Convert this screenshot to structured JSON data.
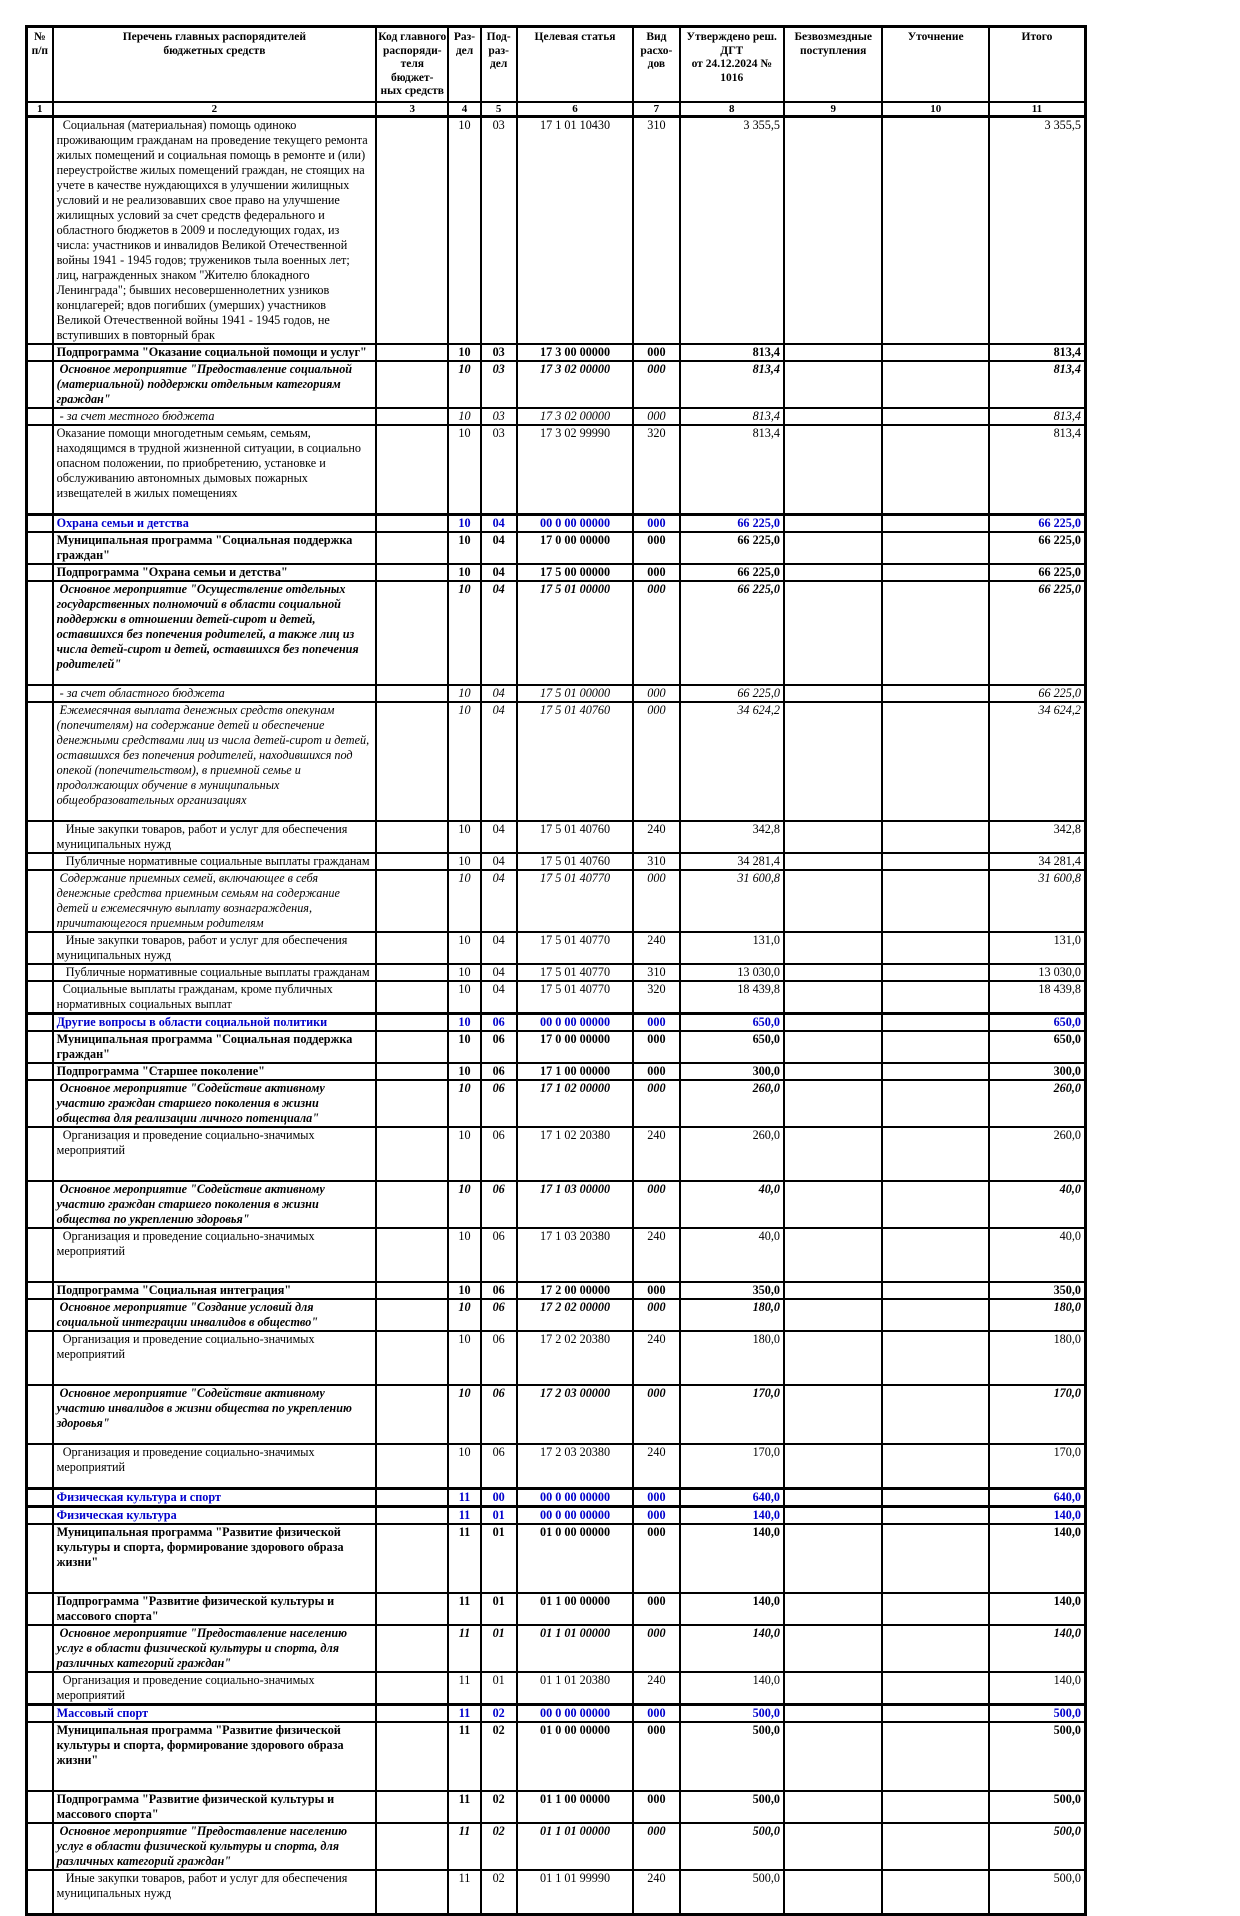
{
  "colors": {
    "section_blue": "#0000cc",
    "border": "#000000",
    "page_background": "#ffffff"
  },
  "table": {
    "header": {
      "labels": [
        "№\nп/п",
        "Перечень главных распорядителей\nбюджетных средств",
        "Код главного\nраспоряди-\nтеля бюджет-\nных средств",
        "Раз-\nдел",
        "Под-\nраз-\nдел",
        "Целевая статья",
        "Вид расхо-\nдов",
        "Утверждено реш. ДГТ\nот 24.12.2024 № 1016",
        "Безвозмездные\nпоступления",
        "Уточнение",
        "Итого"
      ],
      "numbers": [
        "1",
        "2",
        "3",
        "4",
        "5",
        "6",
        "7",
        "8",
        "9",
        "10",
        "11"
      ]
    },
    "rows": [
      {
        "style": "normal",
        "gap": 0,
        "text": "  Социальная (материальная) помощь одиноко проживающим гражданам на проведение текущего ремонта жилых помещений и социальная помощь в ремонте и (или) переустройстве жилых помещений граждан, не стоящих на учете в качестве нуждающихся в улучшении жилищных условий и не реализовавших свое право на улучшение жилищных условий за счет средств федерального и областного бюджетов в 2009 и последующих годах, из числа: участников и инвалидов Великой Отечественной войны 1941 - 1945 годов; тружеников тыла военных лет; лиц, награжденных знаком \"Жителю блокадного Ленинграда\"; бывших несовершеннолетних узников концлагерей; вдов погибших (умерших) участников Великой Отечественной войны 1941 - 1945 годов, не вступивших в повторный брак",
        "razdel": "10",
        "podrazdel": "03",
        "target": "17 1 01 10430",
        "expense": "310",
        "approved": "3 355,5",
        "total": "3 355,5"
      },
      {
        "style": "bold",
        "gap": 0,
        "text": "Подпрограмма \"Оказание социальной помощи и услуг\"",
        "razdel": "10",
        "podrazdel": "03",
        "target": "17 3 00 00000",
        "expense": "000",
        "approved": "813,4",
        "total": "813,4"
      },
      {
        "style": "bolditalic",
        "gap": 0,
        "text": " Основное мероприятие \"Предоставление социальной (материальной) поддержки отдельным категориям граждан\"",
        "razdel": "10",
        "podrazdel": "03",
        "target": "17 3 02 00000",
        "expense": "000",
        "approved": "813,4",
        "total": "813,4"
      },
      {
        "style": "italic",
        "gap": 0,
        "text": " - за счет местного бюджета",
        "razdel": "10",
        "podrazdel": "03",
        "target": "17 3 02 00000",
        "expense": "000",
        "approved": "813,4",
        "total": "813,4"
      },
      {
        "style": "normal",
        "gap": 1,
        "text": "Оказание помощи многодетным семьям, семьям, находящимся в трудной жизненной ситуации, в социально опасном положении, по приобретению, установке и обслуживанию автономных дымовых пожарных извещателей в жилых помещениях",
        "razdel": "10",
        "podrazdel": "03",
        "target": "17 3 02 99990",
        "expense": "320",
        "approved": "813,4",
        "total": "813,4"
      },
      {
        "style": "blue",
        "gap": 0,
        "text": "Охрана семьи и детства",
        "razdel": "10",
        "podrazdel": "04",
        "target": "00 0 00 00000",
        "expense": "000",
        "approved": "66 225,0",
        "total": "66 225,0"
      },
      {
        "style": "bold",
        "gap": 0,
        "text": "Муниципальная программа \"Социальная поддержка граждан\"",
        "razdel": "10",
        "podrazdel": "04",
        "target": "17 0 00 00000",
        "expense": "000",
        "approved": "66 225,0",
        "total": "66 225,0"
      },
      {
        "style": "bold",
        "gap": 0,
        "text": "Подпрограмма \"Охрана семьи и детства\"",
        "razdel": "10",
        "podrazdel": "04",
        "target": "17 5 00 00000",
        "expense": "000",
        "approved": "66 225,0",
        "total": "66 225,0"
      },
      {
        "style": "bolditalic",
        "gap": 1,
        "text": " Основное мероприятие \"Осуществление отдельных государственных полномочий в области социальной поддержки в отношении детей-сирот и детей, оставшихся без попечения родителей, а также лиц из числа детей-сирот и детей, оставшихся без попечения родителей\"",
        "razdel": "10",
        "podrazdel": "04",
        "target": "17 5 01 00000",
        "expense": "000",
        "approved": "66 225,0",
        "total": "66 225,0"
      },
      {
        "style": "italic",
        "gap": 0,
        "text": " - за счет областного бюджета",
        "razdel": "10",
        "podrazdel": "04",
        "target": "17 5 01 00000",
        "expense": "000",
        "approved": "66 225,0",
        "total": "66 225,0"
      },
      {
        "style": "italic",
        "gap": 1,
        "text": " Ежемесячная выплата денежных средств опекунам (попечителям) на содержание детей и обеспечение денежными средствами лиц из числа детей-сирот и детей, оставшихся без попечения родителей, находившихся под опекой (попечительством), в приемной семье и продолжающих обучение в муниципальных общеобразовательных организациях",
        "razdel": "10",
        "podrazdel": "04",
        "target": "17 5 01 40760",
        "expense": "000",
        "approved": "34 624,2",
        "total": "34 624,2"
      },
      {
        "style": "normal",
        "gap": 0,
        "text": "   Иные закупки товаров, работ и услуг для обеспечения муниципальных нужд",
        "razdel": "10",
        "podrazdel": "04",
        "target": "17 5 01 40760",
        "expense": "240",
        "approved": "342,8",
        "total": "342,8"
      },
      {
        "style": "normal",
        "gap": 0,
        "text": "   Публичные нормативные социальные выплаты гражданам",
        "razdel": "10",
        "podrazdel": "04",
        "target": "17 5 01 40760",
        "expense": "310",
        "approved": "34 281,4",
        "total": "34 281,4"
      },
      {
        "style": "italic",
        "gap": 0,
        "text": " Содержание приемных семей, включающее в себя денежные средства приемным семьям на содержание детей и ежемесячную выплату вознаграждения, причитающегося приемным родителям",
        "razdel": "10",
        "podrazdel": "04",
        "target": "17 5 01 40770",
        "expense": "000",
        "approved": "31 600,8",
        "total": "31 600,8"
      },
      {
        "style": "normal",
        "gap": 0,
        "text": "   Иные закупки товаров, работ и услуг для обеспечения муниципальных нужд",
        "razdel": "10",
        "podrazdel": "04",
        "target": "17 5 01 40770",
        "expense": "240",
        "approved": "131,0",
        "total": "131,0"
      },
      {
        "style": "normal",
        "gap": 0,
        "text": "   Публичные нормативные социальные выплаты гражданам",
        "razdel": "10",
        "podrazdel": "04",
        "target": "17 5 01 40770",
        "expense": "310",
        "approved": "13 030,0",
        "total": "13 030,0"
      },
      {
        "style": "normal",
        "gap": 0,
        "text": "  Социальные выплаты гражданам, кроме публичных нормативных социальных выплат",
        "razdel": "10",
        "podrazdel": "04",
        "target": "17 5 01 40770",
        "expense": "320",
        "approved": "18 439,8",
        "total": "18 439,8"
      },
      {
        "style": "blue",
        "gap": 0,
        "text": "Другие вопросы в области социальной политики",
        "razdel": "10",
        "podrazdel": "06",
        "target": "00 0 00 00000",
        "expense": "000",
        "approved": "650,0",
        "total": "650,0"
      },
      {
        "style": "bold",
        "gap": 0,
        "text": "Муниципальная программа \"Социальная поддержка граждан\"",
        "razdel": "10",
        "podrazdel": "06",
        "target": "17 0 00 00000",
        "expense": "000",
        "approved": "650,0",
        "total": "650,0"
      },
      {
        "style": "bold",
        "gap": 0,
        "text": "Подпрограмма \"Старшее поколение\"",
        "razdel": "10",
        "podrazdel": "06",
        "target": "17 1 00 00000",
        "expense": "000",
        "approved": "300,0",
        "total": "300,0"
      },
      {
        "style": "bolditalic",
        "gap": 0,
        "text": " Основное мероприятие \"Содействие активному участию граждан старшего поколения в жизни общества для реализации личного потенциала\"",
        "razdel": "10",
        "podrazdel": "06",
        "target": "17 1 02 00000",
        "expense": "000",
        "approved": "260,0",
        "total": "260,0"
      },
      {
        "style": "normal",
        "gap": 2,
        "text": "  Организация и проведение социально-значимых мероприятий",
        "razdel": "10",
        "podrazdel": "06",
        "target": "17 1 02 20380",
        "expense": "240",
        "approved": "260,0",
        "total": "260,0"
      },
      {
        "style": "bolditalic",
        "gap": 0,
        "text": " Основное мероприятие \"Содействие активному участию граждан старшего поколения в жизни общества по укреплению здоровья\"",
        "razdel": "10",
        "podrazdel": "06",
        "target": "17 1 03 00000",
        "expense": "000",
        "approved": "40,0",
        "total": "40,0"
      },
      {
        "style": "normal",
        "gap": 2,
        "text": "  Организация и проведение социально-значимых мероприятий",
        "razdel": "10",
        "podrazdel": "06",
        "target": "17 1 03 20380",
        "expense": "240",
        "approved": "40,0",
        "total": "40,0"
      },
      {
        "style": "bold",
        "gap": 0,
        "text": "Подпрограмма \"Социальная интеграция\"",
        "razdel": "10",
        "podrazdel": "06",
        "target": "17 2 00 00000",
        "expense": "000",
        "approved": "350,0",
        "total": "350,0"
      },
      {
        "style": "bolditalic",
        "gap": 0,
        "text": " Основное мероприятие \"Создание условий для социальной интеграции инвалидов в общество\"",
        "razdel": "10",
        "podrazdel": "06",
        "target": "17 2 02 00000",
        "expense": "000",
        "approved": "180,0",
        "total": "180,0"
      },
      {
        "style": "normal",
        "gap": 2,
        "text": "  Организация и проведение социально-значимых мероприятий",
        "razdel": "10",
        "podrazdel": "06",
        "target": "17 2 02 20380",
        "expense": "240",
        "approved": "180,0",
        "total": "180,0"
      },
      {
        "style": "bolditalic",
        "gap": 1,
        "text": " Основное мероприятие \"Содействие активному участию инвалидов в жизни общества по укреплению здоровья\"",
        "razdel": "10",
        "podrazdel": "06",
        "target": "17 2 03 00000",
        "expense": "000",
        "approved": "170,0",
        "total": "170,0"
      },
      {
        "style": "normal",
        "gap": 1,
        "text": "  Организация и проведение социально-значимых мероприятий",
        "razdel": "10",
        "podrazdel": "06",
        "target": "17 2 03 20380",
        "expense": "240",
        "approved": "170,0",
        "total": "170,0"
      },
      {
        "style": "blue",
        "gap": 0,
        "text": "Физическая культура и спорт",
        "razdel": "11",
        "podrazdel": "00",
        "target": "00 0 00 00000",
        "expense": "000",
        "approved": "640,0",
        "total": "640,0"
      },
      {
        "style": "blue",
        "gap": 0,
        "text": "Физическая культура",
        "razdel": "11",
        "podrazdel": "01",
        "target": "00 0 00 00000",
        "expense": "000",
        "approved": "140,0",
        "total": "140,0"
      },
      {
        "style": "bold",
        "gap": 2,
        "text": "Муниципальная программа \"Развитие физической культуры и спорта, формирование здорового образа жизни\"",
        "razdel": "11",
        "podrazdel": "01",
        "target": "01 0 00 00000",
        "expense": "000",
        "approved": "140,0",
        "total": "140,0"
      },
      {
        "style": "bold",
        "gap": 0,
        "text": "Подпрограмма \"Развитие физической культуры и массового спорта\"",
        "razdel": "11",
        "podrazdel": "01",
        "target": "01 1 00 00000",
        "expense": "000",
        "approved": "140,0",
        "total": "140,0"
      },
      {
        "style": "bolditalic",
        "gap": 0,
        "text": " Основное мероприятие \"Предоставление населению услуг в области физической культуры и спорта, для различных категорий граждан\"",
        "razdel": "11",
        "podrazdel": "01",
        "target": "01 1 01 00000",
        "expense": "000",
        "approved": "140,0",
        "total": "140,0"
      },
      {
        "style": "normal",
        "gap": 0,
        "text": "  Организация и проведение социально-значимых мероприятий",
        "razdel": "11",
        "podrazdel": "01",
        "target": "01 1 01 20380",
        "expense": "240",
        "approved": "140,0",
        "total": "140,0"
      },
      {
        "style": "blue",
        "gap": 0,
        "text": "Массовый спорт",
        "razdel": "11",
        "podrazdel": "02",
        "target": "00 0 00 00000",
        "expense": "000",
        "approved": "500,0",
        "total": "500,0"
      },
      {
        "style": "bold",
        "gap": 2,
        "text": "Муниципальная программа \"Развитие физической культуры и спорта, формирование здорового образа жизни\"",
        "razdel": "11",
        "podrazdel": "02",
        "target": "01 0 00 00000",
        "expense": "000",
        "approved": "500,0",
        "total": "500,0"
      },
      {
        "style": "bold",
        "gap": 0,
        "text": "Подпрограмма \"Развитие физической культуры и массового спорта\"",
        "razdel": "11",
        "podrazdel": "02",
        "target": "01 1 00 00000",
        "expense": "000",
        "approved": "500,0",
        "total": "500,0"
      },
      {
        "style": "bolditalic",
        "gap": 0,
        "text": " Основное мероприятие \"Предоставление населению услуг в области физической культуры и спорта, для различных категорий граждан\"",
        "razdel": "11",
        "podrazdel": "02",
        "target": "01 1 01 00000",
        "expense": "000",
        "approved": "500,0",
        "total": "500,0"
      },
      {
        "style": "normal",
        "gap": 1,
        "text": "   Иные закупки товаров, работ и услуг для обеспечения муниципальных нужд",
        "razdel": "11",
        "podrazdel": "02",
        "target": "01 1 01 99990",
        "expense": "240",
        "approved": "500,0",
        "total": "500,0"
      }
    ]
  }
}
